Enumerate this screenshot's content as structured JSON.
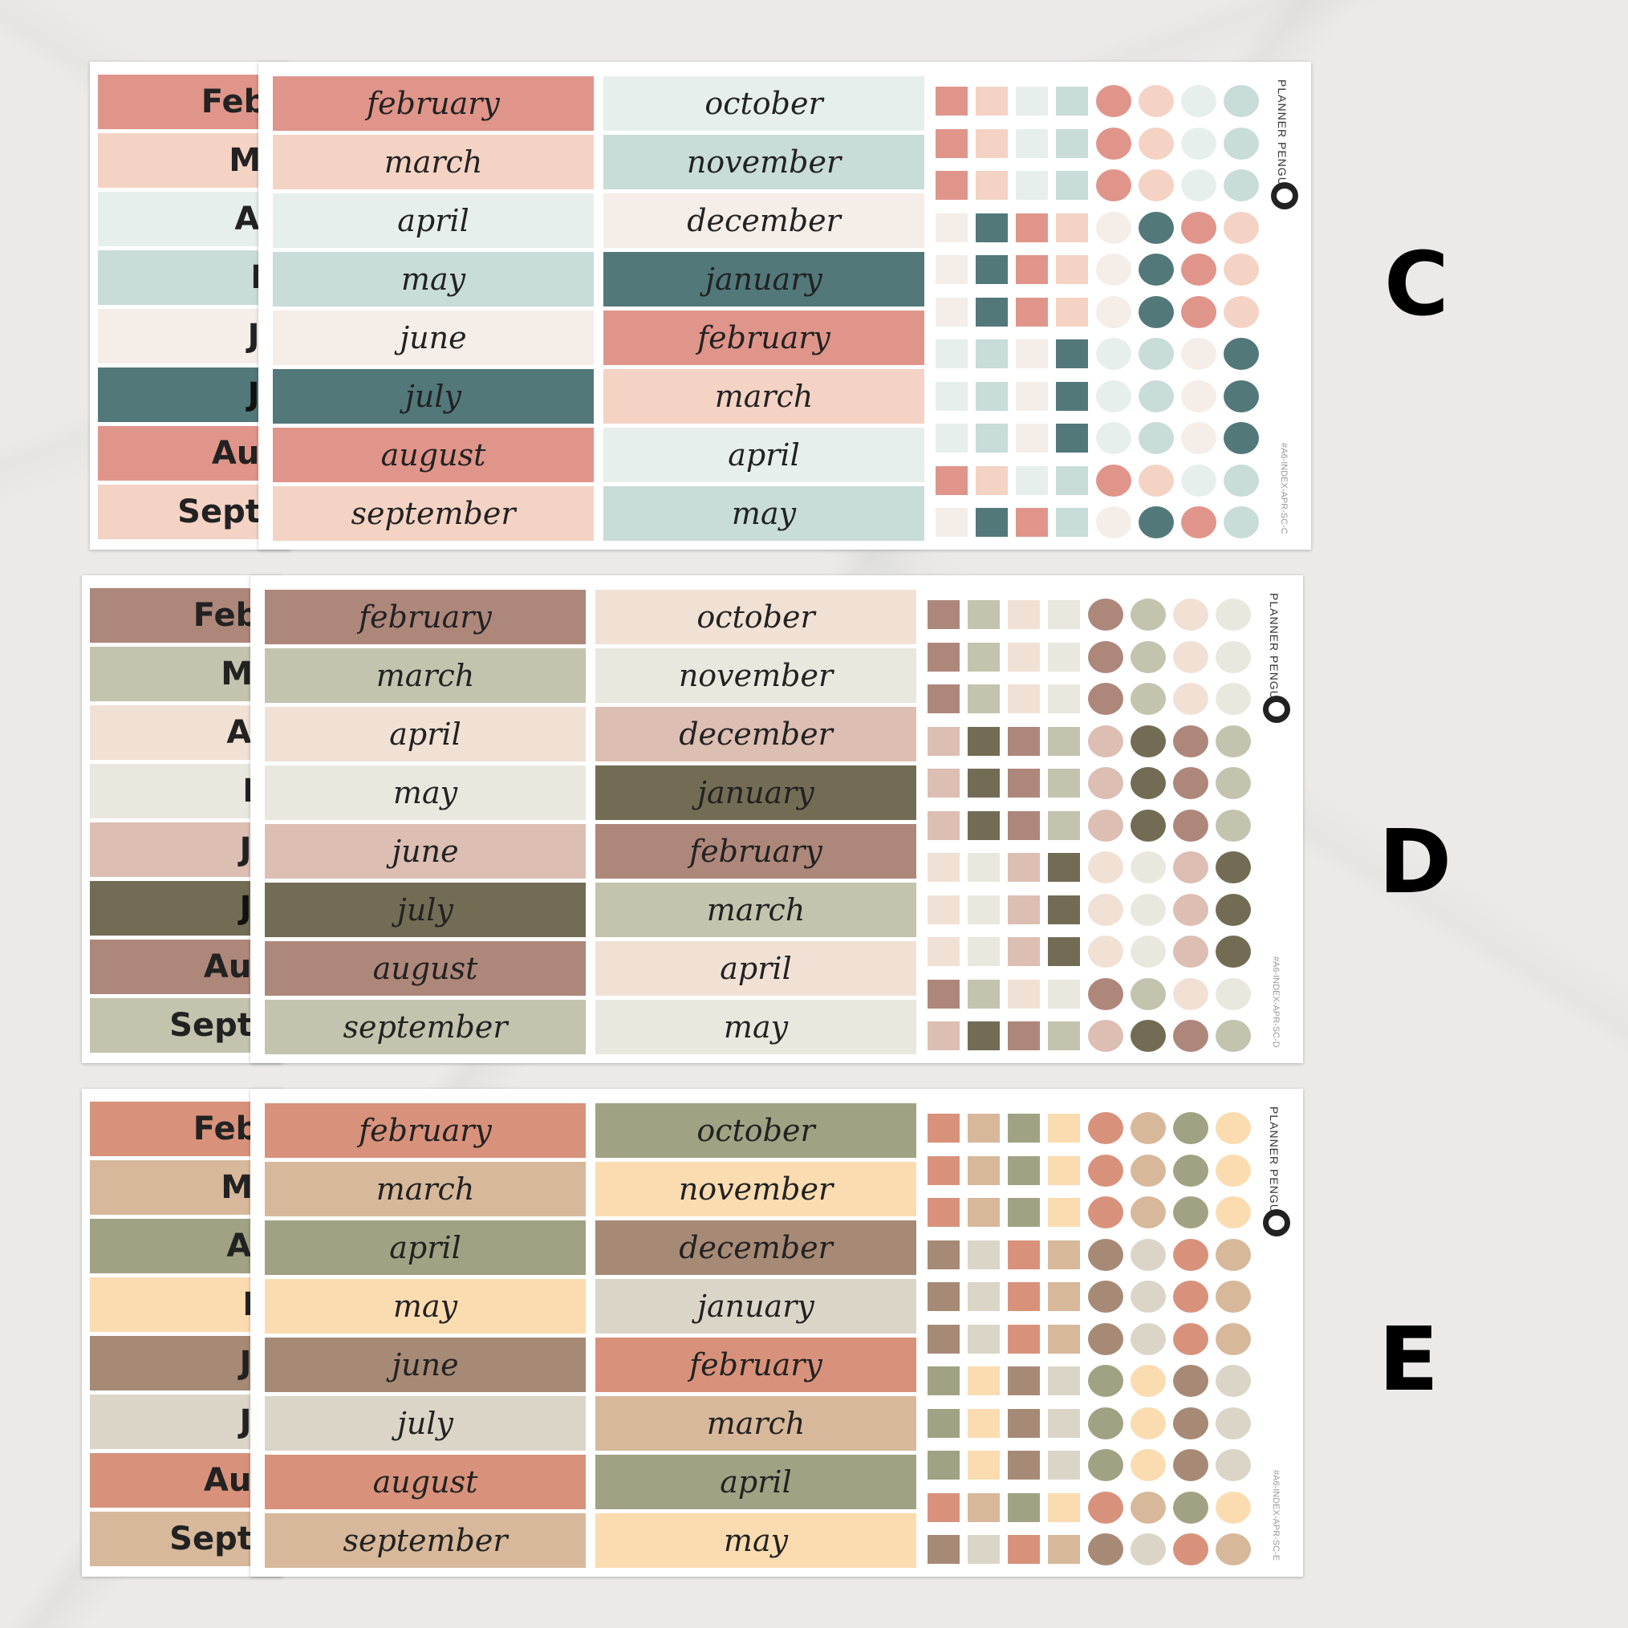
{
  "brand": "PLANNER PENGUIN",
  "back_months": [
    "Febr",
    "Ma",
    "Ap",
    "M",
    "Ju",
    "Ju",
    "Aug",
    "Septe"
  ],
  "sheets": [
    {
      "letter": "C",
      "sku": "#A6-INDEX-APR-SC-C",
      "col1": [
        "february",
        "march",
        "april",
        "may",
        "june",
        "july",
        "august",
        "september"
      ],
      "col2": [
        "october",
        "november",
        "december",
        "january",
        "february",
        "march",
        "april",
        "may"
      ],
      "col1_colors": [
        "#e0958a",
        "#f4d3c4",
        "#e6efec",
        "#c8dcd8",
        "#f5ede8",
        "#52787a",
        "#e0958a",
        "#f4d3c4"
      ],
      "col2_colors": [
        "#e6efec",
        "#c8dcd8",
        "#f5ede8",
        "#52787a",
        "#e0958a",
        "#f4d3c4",
        "#e6efec",
        "#c8dcd8"
      ],
      "back_colors": [
        "#e0958a",
        "#f4d3c4",
        "#e6efec",
        "#c8dcd8",
        "#f5ede8",
        "#52787a",
        "#e0958a",
        "#f4d3c4"
      ],
      "dot_rows": [
        [
          "#e0958a",
          "#f4d3c4",
          "#e6efec",
          "#c8dcd8"
        ],
        [
          "#e0958a",
          "#f4d3c4",
          "#e6efec",
          "#c8dcd8"
        ],
        [
          "#e0958a",
          "#f4d3c4",
          "#e6efec",
          "#c8dcd8"
        ],
        [
          "#f5ede8",
          "#52787a",
          "#e0958a",
          "#f4d3c4"
        ],
        [
          "#f5ede8",
          "#52787a",
          "#e0958a",
          "#f4d3c4"
        ],
        [
          "#f5ede8",
          "#52787a",
          "#e0958a",
          "#f4d3c4"
        ],
        [
          "#e6efec",
          "#c8dcd8",
          "#f5ede8",
          "#52787a"
        ],
        [
          "#e6efec",
          "#c8dcd8",
          "#f5ede8",
          "#52787a"
        ],
        [
          "#e6efec",
          "#c8dcd8",
          "#f5ede8",
          "#52787a"
        ],
        [
          "#e0958a",
          "#f4d3c4",
          "#e6efec",
          "#c8dcd8"
        ],
        [
          "#f5ede8",
          "#52787a",
          "#e0958a",
          "#c8dcd8"
        ]
      ]
    },
    {
      "letter": "D",
      "sku": "#A6-INDEX-APR-SC-D",
      "col1": [
        "february",
        "march",
        "april",
        "may",
        "june",
        "july",
        "august",
        "september"
      ],
      "col2": [
        "october",
        "november",
        "december",
        "january",
        "february",
        "march",
        "april",
        "may"
      ],
      "col1_colors": [
        "#ae877b",
        "#c4c3ae",
        "#f1e1d5",
        "#e9e8de",
        "#dcbeb2",
        "#736c55",
        "#ae877b",
        "#c4c3ae"
      ],
      "col2_colors": [
        "#f1e1d5",
        "#e9e8de",
        "#dcbeb2",
        "#736c55",
        "#ae877b",
        "#c4c3ae",
        "#f1e1d5",
        "#e9e8de"
      ],
      "back_colors": [
        "#ae877b",
        "#c4c3ae",
        "#f1e1d5",
        "#e9e8de",
        "#dcbeb2",
        "#736c55",
        "#ae877b",
        "#c4c3ae"
      ],
      "dot_rows": [
        [
          "#ae877b",
          "#c4c3ae",
          "#f1e1d5",
          "#e9e8de"
        ],
        [
          "#ae877b",
          "#c4c3ae",
          "#f1e1d5",
          "#e9e8de"
        ],
        [
          "#ae877b",
          "#c4c3ae",
          "#f1e1d5",
          "#e9e8de"
        ],
        [
          "#dcbeb2",
          "#736c55",
          "#ae877b",
          "#c4c3ae"
        ],
        [
          "#dcbeb2",
          "#736c55",
          "#ae877b",
          "#c4c3ae"
        ],
        [
          "#dcbeb2",
          "#736c55",
          "#ae877b",
          "#c4c3ae"
        ],
        [
          "#f1e1d5",
          "#e9e8de",
          "#dcbeb2",
          "#736c55"
        ],
        [
          "#f1e1d5",
          "#e9e8de",
          "#dcbeb2",
          "#736c55"
        ],
        [
          "#f1e1d5",
          "#e9e8de",
          "#dcbeb2",
          "#736c55"
        ],
        [
          "#ae877b",
          "#c4c3ae",
          "#f1e1d5",
          "#e9e8de"
        ],
        [
          "#dcbeb2",
          "#736c55",
          "#ae877b",
          "#c4c3ae"
        ]
      ]
    },
    {
      "letter": "E",
      "sku": "#A6-INDEX-APR-SC-E",
      "col1": [
        "february",
        "march",
        "april",
        "may",
        "june",
        "july",
        "august",
        "september"
      ],
      "col2": [
        "october",
        "november",
        "december",
        "january",
        "february",
        "march",
        "april",
        "may"
      ],
      "col1_colors": [
        "#d8927b",
        "#d7b89a",
        "#a1a283",
        "#fbdcb1",
        "#a78a76",
        "#dbd5c8",
        "#d8927b",
        "#d7b89a"
      ],
      "col2_colors": [
        "#a1a283",
        "#fbdcb1",
        "#a78a76",
        "#dbd5c8",
        "#d8927b",
        "#d7b89a",
        "#a1a283",
        "#fbdcb1"
      ],
      "back_colors": [
        "#d8927b",
        "#d7b89a",
        "#a1a283",
        "#fbdcb1",
        "#a78a76",
        "#dbd5c8",
        "#d8927b",
        "#d7b89a"
      ],
      "dot_rows": [
        [
          "#d8927b",
          "#d7b89a",
          "#a1a283",
          "#fbdcb1"
        ],
        [
          "#d8927b",
          "#d7b89a",
          "#a1a283",
          "#fbdcb1"
        ],
        [
          "#d8927b",
          "#d7b89a",
          "#a1a283",
          "#fbdcb1"
        ],
        [
          "#a78a76",
          "#dbd5c8",
          "#d8927b",
          "#d7b89a"
        ],
        [
          "#a78a76",
          "#dbd5c8",
          "#d8927b",
          "#d7b89a"
        ],
        [
          "#a78a76",
          "#dbd5c8",
          "#d8927b",
          "#d7b89a"
        ],
        [
          "#a1a283",
          "#fbdcb1",
          "#a78a76",
          "#dbd5c8"
        ],
        [
          "#a1a283",
          "#fbdcb1",
          "#a78a76",
          "#dbd5c8"
        ],
        [
          "#a1a283",
          "#fbdcb1",
          "#a78a76",
          "#dbd5c8"
        ],
        [
          "#d8927b",
          "#d7b89a",
          "#a1a283",
          "#fbdcb1"
        ],
        [
          "#a78a76",
          "#dbd5c8",
          "#d8927b",
          "#d7b89a"
        ]
      ]
    }
  ]
}
